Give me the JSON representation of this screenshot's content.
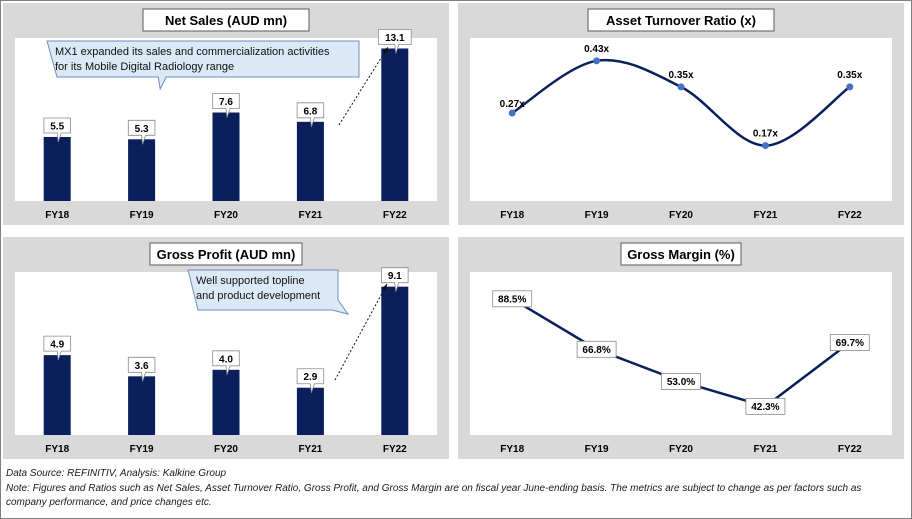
{
  "colors": {
    "bar": "#0b1f5c",
    "line": "#0b1f5c",
    "marker": "#4472c4",
    "panel_bg": "#d9d9d9",
    "plot_bg": "#ffffff",
    "callout_bg": "#dbe8f5",
    "callout_border": "#6b8fc0"
  },
  "chart_data": [
    {
      "type": "bar",
      "title": "Net Sales (AUD mn)",
      "categories": [
        "FY18",
        "FY19",
        "FY20",
        "FY21",
        "FY22"
      ],
      "values": [
        5.5,
        5.3,
        7.6,
        6.8,
        13.1
      ],
      "labels": [
        "5.5",
        "5.3",
        "7.6",
        "6.8",
        "13.1"
      ],
      "ylim": [
        0,
        14
      ],
      "grid": false,
      "annotation": {
        "lines": [
          "MX1 expanded its sales and commercialization activities",
          "for its Mobile Digital Radiology range"
        ]
      }
    },
    {
      "type": "line",
      "title": "Asset Turnover Ratio (x)",
      "smooth": true,
      "categories": [
        "FY18",
        "FY19",
        "FY20",
        "FY21",
        "FY22"
      ],
      "values": [
        0.27,
        0.43,
        0.35,
        0.17,
        0.35
      ],
      "labels": [
        "0.27x",
        "0.43x",
        "0.35x",
        "0.17x",
        "0.35x"
      ],
      "ylim": [
        0.0,
        0.5
      ],
      "grid": false
    },
    {
      "type": "bar",
      "title": "Gross Profit (AUD mn)",
      "categories": [
        "FY18",
        "FY19",
        "FY20",
        "FY21",
        "FY22"
      ],
      "values": [
        4.9,
        3.6,
        4.0,
        2.9,
        9.1
      ],
      "labels": [
        "4.9",
        "3.6",
        "4.0",
        "2.9",
        "9.1"
      ],
      "ylim": [
        0,
        10
      ],
      "grid": false,
      "annotation": {
        "lines": [
          "Well supported topline",
          "and product development"
        ]
      }
    },
    {
      "type": "line",
      "title": "Gross Margin (%)",
      "smooth": false,
      "categories": [
        "FY18",
        "FY19",
        "FY20",
        "FY21",
        "FY22"
      ],
      "values": [
        88.5,
        66.8,
        53.0,
        42.3,
        69.7
      ],
      "labels": [
        "88.5%",
        "66.8%",
        "53.0%",
        "42.3%",
        "69.7%"
      ],
      "ylim": [
        30,
        100
      ],
      "grid": false
    }
  ],
  "footer": {
    "source": "Data Source: REFINITIV, Analysis: Kalkine Group",
    "note": "Note: Figures and Ratios such as Net Sales, Asset Turnover Ratio, Gross Profit, and Gross Margin are on fiscal year June-ending basis. The metrics are subject to change as per factors such as company performance, and price changes etc."
  }
}
